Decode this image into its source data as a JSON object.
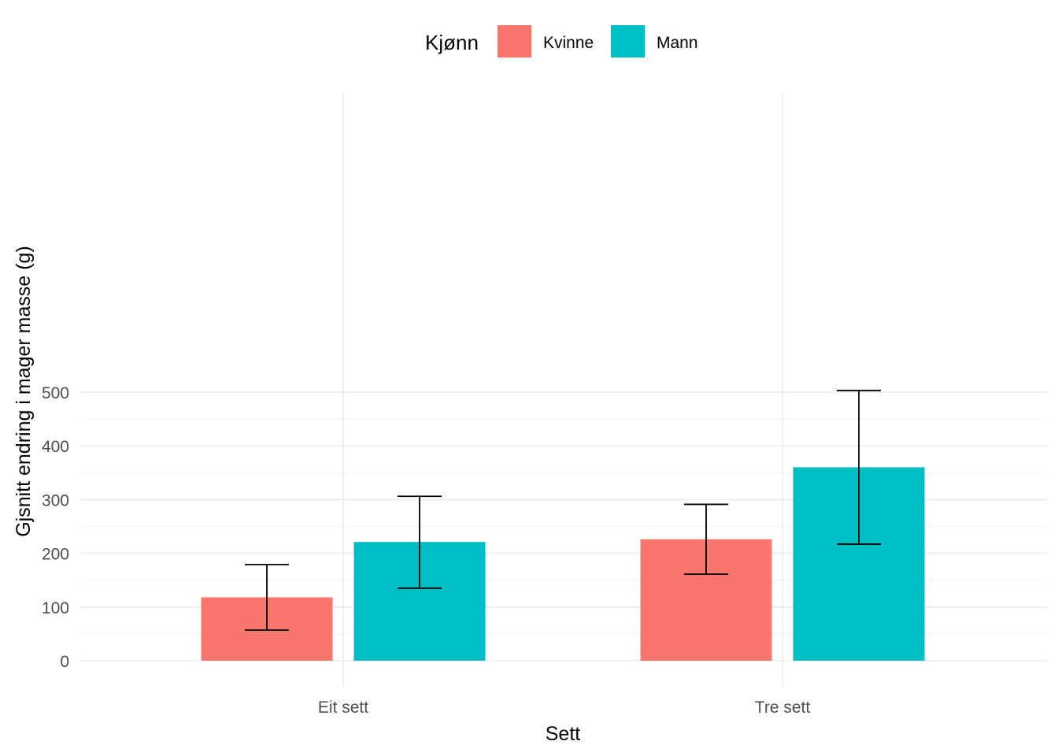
{
  "chart_data": {
    "type": "bar",
    "categories": [
      "Eit sett",
      "Tre sett"
    ],
    "series": [
      {
        "name": "Kvinne",
        "color": "#F8766D",
        "values": [
          118,
          226
        ],
        "error_low": [
          57,
          161
        ],
        "error_high": [
          179,
          291
        ]
      },
      {
        "name": "Mann",
        "color": "#00BFC4",
        "values": [
          221,
          360
        ],
        "error_low": [
          135,
          217
        ],
        "error_high": [
          306,
          503
        ]
      }
    ],
    "xlabel": "Sett",
    "ylabel": "Gjsnitt endring i mager masse (g)",
    "ylim": [
      -22,
      528
    ],
    "yticks": [
      0,
      100,
      200,
      300,
      400,
      500
    ],
    "grid": true,
    "legend": {
      "title": "Kjønn",
      "position": "top"
    }
  }
}
